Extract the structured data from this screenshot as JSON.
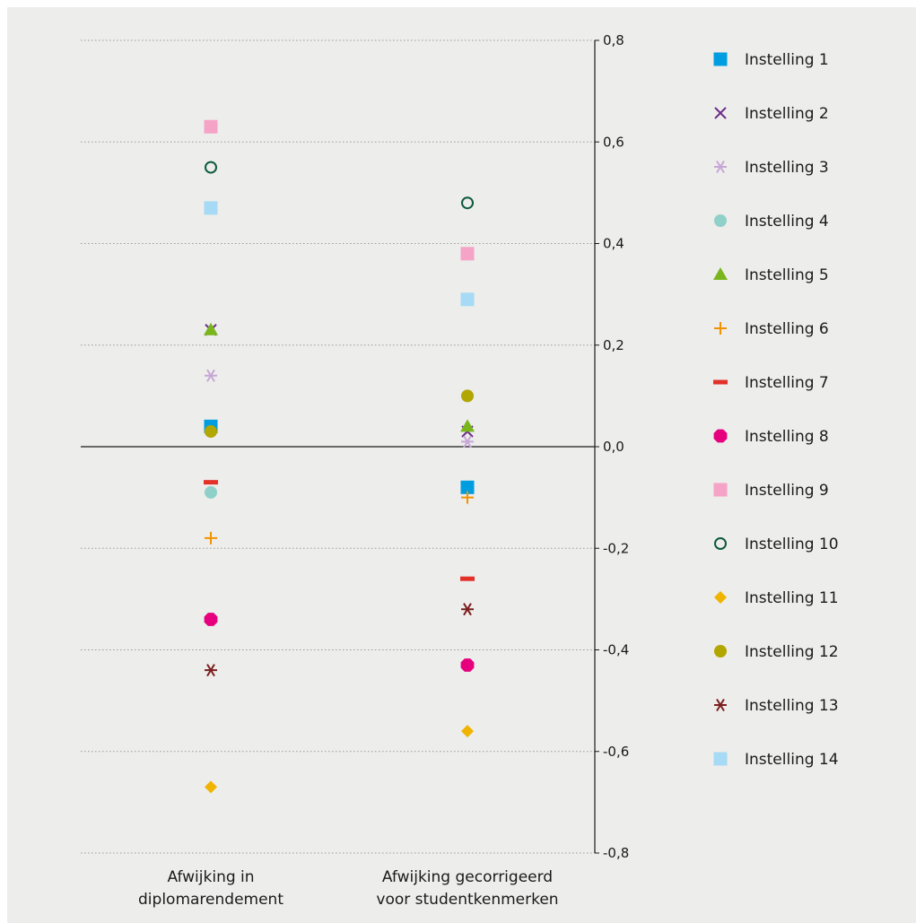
{
  "chart_data": {
    "type": "scatter",
    "categories": [
      [
        "Afwijking in",
        "diplomarendement"
      ],
      [
        "Afwijking gecorrigeerd",
        "voor studentkenmerken"
      ]
    ],
    "ylim": [
      -0.8,
      0.8
    ],
    "yticks": [
      "0,8",
      "0,6",
      "0,4",
      "0,2",
      "0,0",
      "-0,2",
      "-0,4",
      "-0,6",
      "-0,8"
    ],
    "ytick_values": [
      0.8,
      0.6,
      0.4,
      0.2,
      0.0,
      -0.2,
      -0.4,
      -0.6,
      -0.8
    ],
    "grid": "horizontal dotted",
    "legend_position": "right",
    "series": [
      {
        "name": "Instelling 1",
        "marker": "square",
        "color": "#009ee0",
        "values": [
          0.04,
          -0.08
        ]
      },
      {
        "name": "Instelling 2",
        "marker": "x",
        "color": "#6b2c8a",
        "values": [
          0.23,
          0.03
        ]
      },
      {
        "name": "Instelling 3",
        "marker": "asterisk",
        "color": "#c6a7d6",
        "values": [
          0.14,
          0.01
        ]
      },
      {
        "name": "Instelling 4",
        "marker": "circle",
        "color": "#8fd0c8",
        "values": [
          -0.09,
          null
        ]
      },
      {
        "name": "Instelling 5",
        "marker": "triangle",
        "color": "#7ab51d",
        "values": [
          0.23,
          0.04
        ]
      },
      {
        "name": "Instelling 6",
        "marker": "plus",
        "color": "#f39200",
        "values": [
          -0.18,
          -0.1
        ]
      },
      {
        "name": "Instelling 7",
        "marker": "dash",
        "color": "#e3312a",
        "values": [
          -0.07,
          -0.26
        ]
      },
      {
        "name": "Instelling 8",
        "marker": "octagon",
        "color": "#e6007e",
        "values": [
          -0.34,
          -0.43
        ]
      },
      {
        "name": "Instelling 9",
        "marker": "square",
        "color": "#f5a3c7",
        "values": [
          0.63,
          0.38
        ]
      },
      {
        "name": "Instelling 10",
        "marker": "open-circle",
        "color": "#0b5a3c",
        "values": [
          0.55,
          0.48
        ]
      },
      {
        "name": "Instelling 11",
        "marker": "diamond",
        "color": "#f0b400",
        "values": [
          -0.67,
          -0.56
        ]
      },
      {
        "name": "Instelling 12",
        "marker": "circle",
        "color": "#b2a600",
        "values": [
          0.03,
          0.1
        ]
      },
      {
        "name": "Instelling 13",
        "marker": "asterisk",
        "color": "#7b1f1f",
        "values": [
          -0.44,
          -0.32
        ]
      },
      {
        "name": "Instelling 14",
        "marker": "square",
        "color": "#a6daf5",
        "values": [
          0.47,
          0.29
        ]
      }
    ]
  }
}
